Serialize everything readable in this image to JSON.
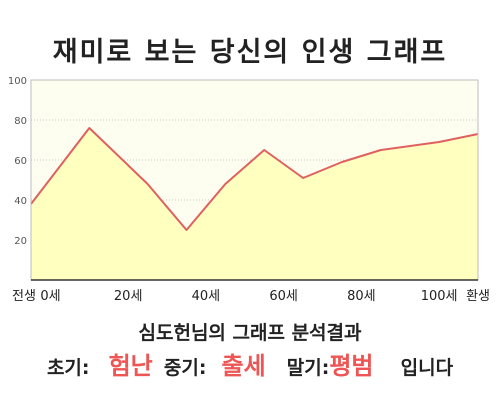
{
  "chart_data": {
    "type": "area",
    "title": "재미로 보는 당신의 인생 그래프",
    "xlabel": "",
    "ylabel": "",
    "ylim": [
      0,
      100
    ],
    "yticks": [
      20,
      40,
      60,
      80,
      100
    ],
    "xlim": [
      -5,
      110
    ],
    "xticks": [
      {
        "value": -5,
        "label": "전생"
      },
      {
        "value": 0,
        "label": "0세"
      },
      {
        "value": 20,
        "label": "20세"
      },
      {
        "value": 40,
        "label": "40세"
      },
      {
        "value": 60,
        "label": "60세"
      },
      {
        "value": 80,
        "label": "80세"
      },
      {
        "value": 100,
        "label": "100세"
      },
      {
        "value": 110,
        "label": "환생"
      }
    ],
    "grid": true,
    "legend": "none",
    "series": [
      {
        "x": [
          -5,
          10,
          25,
          35,
          45,
          55,
          65,
          75,
          85,
          100,
          110
        ],
        "y": [
          38,
          76,
          48,
          25,
          48,
          65,
          51,
          59,
          65,
          69,
          73
        ]
      }
    ]
  },
  "result": {
    "title": "심도헌님의 그래프 분석결과",
    "early_label": "초기:",
    "early_value": "험난",
    "mid_label": "중기:",
    "mid_value": "출세",
    "late_label": "말기:",
    "late_value": "평범",
    "suffix": "입니다"
  },
  "colors": {
    "line": "#e06060",
    "fill": "#ffffbf",
    "plot_bg": "#fefef0",
    "grid": "#c8c8c8",
    "highlight": "#ee5555"
  }
}
